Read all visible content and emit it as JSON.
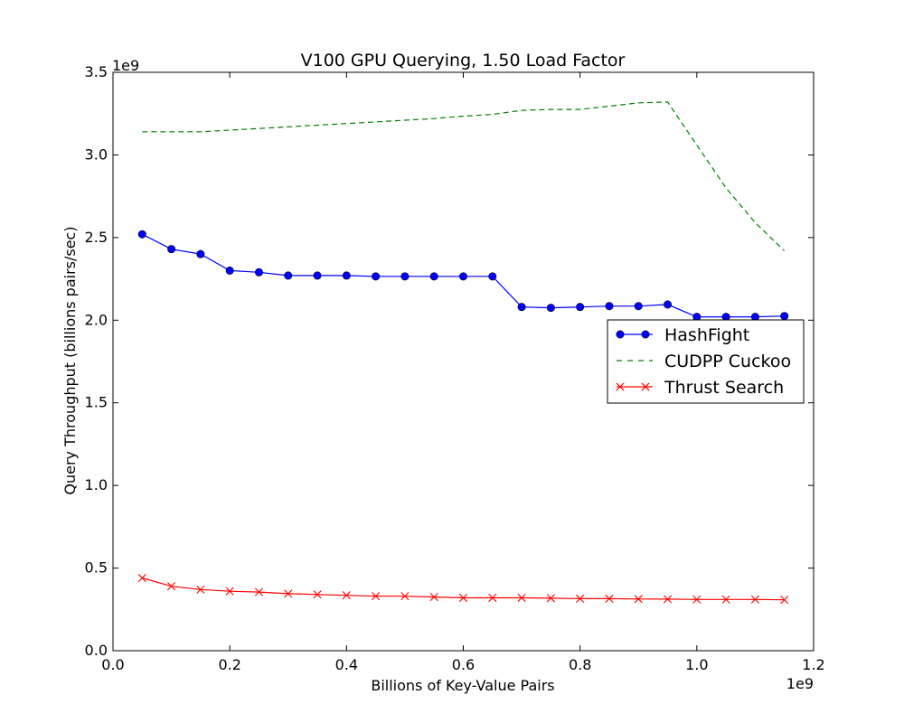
{
  "chart_data": {
    "type": "line",
    "title": "V100 GPU Querying, 1.50 Load Factor",
    "xlabel": "Billions of Key-Value Pairs",
    "ylabel": "Query Throughput (billions pairs/sec)",
    "x_offset_label": "1e9",
    "y_offset_label": "1e9",
    "xlim": [
      0.0,
      1.2
    ],
    "ylim": [
      0.0,
      3.5
    ],
    "x_ticks": [
      0.0,
      0.2,
      0.4,
      0.6,
      0.8,
      1.0,
      1.2
    ],
    "x_tick_labels": [
      "0.0",
      "0.2",
      "0.4",
      "0.6",
      "0.8",
      "1.0",
      "1.2"
    ],
    "y_ticks": [
      0.0,
      0.5,
      1.0,
      1.5,
      2.0,
      2.5,
      3.0,
      3.5
    ],
    "y_tick_labels": [
      "0.0",
      "0.5",
      "1.0",
      "1.5",
      "2.0",
      "2.5",
      "3.0",
      "3.5"
    ],
    "grid": false,
    "legend_position": "center-right",
    "x": [
      0.05,
      0.1,
      0.15,
      0.2,
      0.25,
      0.3,
      0.35,
      0.4,
      0.45,
      0.5,
      0.55,
      0.6,
      0.65,
      0.7,
      0.75,
      0.8,
      0.85,
      0.9,
      0.95,
      1.0,
      1.05,
      1.1,
      1.15
    ],
    "series": [
      {
        "name": "HashFight",
        "color": "#0000ff",
        "marker": "circle",
        "style": "solid",
        "values": [
          2.52,
          2.43,
          2.4,
          2.3,
          2.29,
          2.27,
          2.27,
          2.27,
          2.265,
          2.265,
          2.265,
          2.265,
          2.265,
          2.08,
          2.075,
          2.08,
          2.085,
          2.085,
          2.095,
          2.02,
          2.02,
          2.02,
          2.025
        ]
      },
      {
        "name": "CUDPP Cuckoo",
        "color": "#008000",
        "marker": "none",
        "style": "dashed",
        "values": [
          3.14,
          3.14,
          3.14,
          3.15,
          3.16,
          3.17,
          3.18,
          3.19,
          3.2,
          3.21,
          3.22,
          3.235,
          3.245,
          3.27,
          3.275,
          3.275,
          3.295,
          3.315,
          3.32,
          3.06,
          2.8,
          2.59,
          2.42
        ]
      },
      {
        "name": "Thrust Search",
        "color": "#ff0000",
        "marker": "x",
        "style": "solid",
        "values": [
          0.44,
          0.39,
          0.37,
          0.36,
          0.355,
          0.345,
          0.34,
          0.335,
          0.33,
          0.33,
          0.325,
          0.32,
          0.32,
          0.32,
          0.318,
          0.315,
          0.315,
          0.313,
          0.312,
          0.31,
          0.31,
          0.31,
          0.308
        ]
      }
    ]
  }
}
